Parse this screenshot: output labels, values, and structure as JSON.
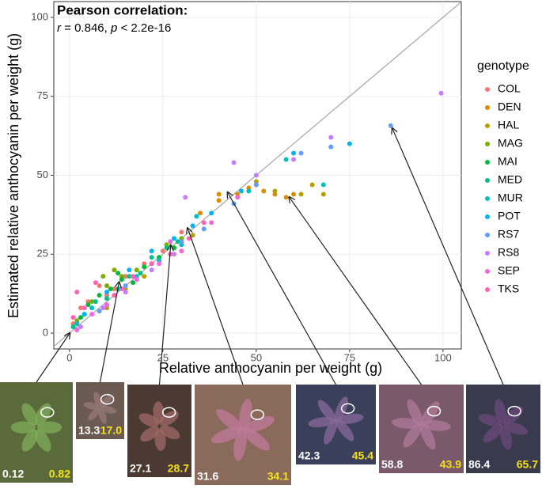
{
  "chart_data": {
    "type": "scatter",
    "annotation_title": "Pearson correlation:",
    "annotation_parts": [
      "r",
      " = 0.846, ",
      "p",
      " < 2.2e-16"
    ],
    "x_label": "Relative anthocyanin per weight (g)",
    "y_label": "Estimated relative anthocyanin per weight (g)",
    "legend_title": "genotype",
    "xlim": [
      -4.2,
      104.9
    ],
    "ylim": [
      -5,
      105
    ],
    "xticks": [
      0,
      25,
      50,
      75,
      100
    ],
    "yticks": [
      0,
      25,
      50,
      75,
      100
    ],
    "grid": true,
    "identity_line": true,
    "series": [
      {
        "name": "COL",
        "color": "#F8766D",
        "x": [
          1,
          3,
          5,
          8,
          10,
          12,
          15,
          20,
          25,
          30
        ],
        "values": [
          3,
          8,
          10,
          15,
          12,
          14,
          18,
          22,
          26,
          32
        ]
      },
      {
        "name": "DEN",
        "color": "#DE8C00",
        "x": [
          35,
          40,
          45,
          48,
          50,
          52,
          55,
          58,
          60,
          40
        ],
        "values": [
          38,
          42,
          44,
          46,
          47,
          45,
          44,
          43,
          44,
          44
        ]
      },
      {
        "name": "HAL",
        "color": "#B79F00",
        "x": [
          10,
          15,
          20,
          28,
          33,
          50,
          55,
          62,
          65,
          68
        ],
        "values": [
          8,
          14,
          18,
          27,
          31,
          48,
          45,
          44,
          47,
          44
        ]
      },
      {
        "name": "MAG",
        "color": "#7CAE00",
        "x": [
          2,
          6,
          10,
          14,
          18,
          22,
          26,
          30,
          9,
          12
        ],
        "values": [
          4,
          10,
          15,
          18,
          20,
          22,
          28,
          30,
          18,
          20
        ]
      },
      {
        "name": "MAI",
        "color": "#00BA38",
        "x": [
          3,
          5,
          8,
          11,
          14,
          17,
          20,
          24,
          28,
          13
        ],
        "values": [
          5,
          9,
          12,
          14,
          17,
          16,
          21,
          24,
          27,
          19
        ]
      },
      {
        "name": "MED",
        "color": "#00C08B",
        "x": [
          1,
          4,
          7,
          10,
          13,
          16,
          19,
          22,
          26,
          29
        ],
        "values": [
          2,
          6,
          10,
          11,
          14,
          18,
          19,
          24,
          27,
          29
        ]
      },
      {
        "name": "MUR",
        "color": "#00BFC4",
        "x": [
          2,
          6,
          12,
          18,
          24,
          30,
          34,
          48,
          58,
          68
        ],
        "values": [
          3,
          8,
          12,
          18,
          23,
          28,
          37,
          45,
          55,
          47
        ]
      },
      {
        "name": "POT",
        "color": "#00B4F0",
        "x": [
          4,
          10,
          16,
          22,
          28,
          33,
          38,
          46,
          60,
          75
        ],
        "values": [
          6,
          13,
          20,
          26,
          30,
          34,
          38,
          45,
          57,
          60
        ]
      },
      {
        "name": "RS7",
        "color": "#619CFF",
        "x": [
          8,
          15,
          22,
          30,
          36,
          44,
          50,
          62,
          70,
          86
        ],
        "values": [
          7,
          15,
          22,
          29,
          33,
          41,
          47,
          57,
          59,
          65.7
        ]
      },
      {
        "name": "RS8",
        "color": "#C77CFF",
        "x": [
          3,
          9,
          15,
          22,
          28,
          31,
          44,
          50,
          60,
          70,
          99.5
        ],
        "values": [
          2,
          8,
          13,
          20,
          25,
          43,
          54,
          50,
          55,
          62,
          76
        ]
      },
      {
        "name": "SEP",
        "color": "#F564E3",
        "x": [
          2,
          6,
          10,
          14,
          18,
          24,
          30,
          38,
          45,
          27
        ],
        "values": [
          1,
          6,
          9,
          14,
          17,
          22,
          26,
          35,
          43,
          29
        ]
      },
      {
        "name": "TKS",
        "color": "#FF64B0",
        "x": [
          1,
          4,
          7,
          12,
          17,
          22,
          27,
          32,
          36,
          2
        ],
        "values": [
          5,
          8,
          16,
          12,
          18,
          22,
          25,
          30,
          35,
          13
        ]
      }
    ],
    "insets": [
      {
        "measured": 0.12,
        "estimated": 0.82
      },
      {
        "measured": 13.3,
        "estimated": {
          "value": 17,
          "label": "17.0"
        }
      },
      {
        "measured": 27.1,
        "estimated": 28.7
      },
      {
        "measured": 31.6,
        "estimated": 34.1
      },
      {
        "measured": 42.3,
        "estimated": 45.4
      },
      {
        "measured": 58.8,
        "estimated": 43.9
      },
      {
        "measured": 86.4,
        "estimated": 65.7
      }
    ]
  }
}
